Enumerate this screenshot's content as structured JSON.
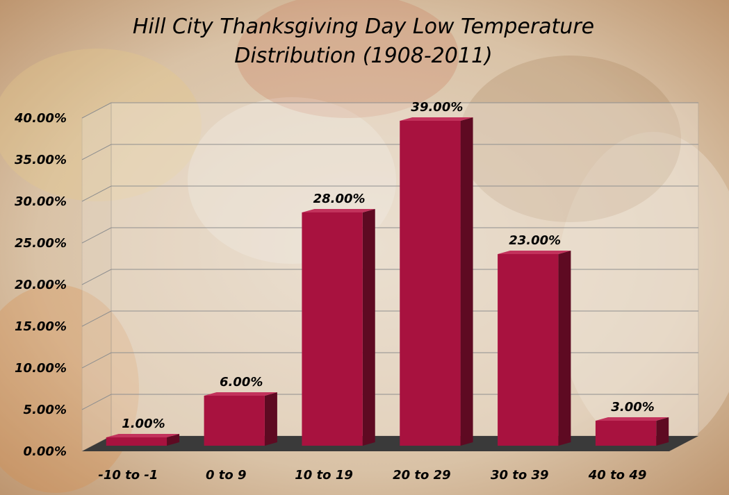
{
  "chart_data": {
    "type": "bar",
    "title_lines": [
      "Hill City Thanksgiving Day Low Temperature",
      "Distribution (1908-2011)"
    ],
    "categories": [
      "-10 to -1",
      "0 to 9",
      "10 to 19",
      "20 to 29",
      "30 to 39",
      "40 to 49"
    ],
    "values": [
      1.0,
      6.0,
      28.0,
      39.0,
      23.0,
      3.0
    ],
    "value_labels": [
      "1.00%",
      "6.00%",
      "28.00%",
      "39.00%",
      "23.00%",
      "3.00%"
    ],
    "y_ticks": [
      "0.00%",
      "5.00%",
      "10.00%",
      "15.00%",
      "20.00%",
      "25.00%",
      "30.00%",
      "35.00%",
      "40.00%"
    ],
    "ylim": [
      0,
      40
    ],
    "grid": true,
    "legend": "none",
    "bar_color": "#a8123f",
    "bar_side_color": "#5e0a22",
    "bar_top_color": "#c2325c",
    "floor_color": "#3a3a3a"
  }
}
